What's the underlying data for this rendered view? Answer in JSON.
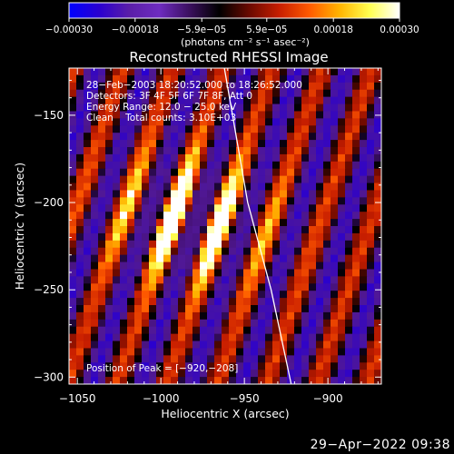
{
  "chart_data": {
    "type": "heatmap",
    "title": "Reconstructed RHESSI Image",
    "xlabel": "Heliocentric X (arcsec)",
    "ylabel": "Heliocentric Y (arcsec)",
    "xlim": [
      -1055,
      -868
    ],
    "ylim": [
      -304,
      -123
    ],
    "xticks": [
      -1050,
      -1000,
      -950,
      -900
    ],
    "xtick_labels": [
      "−1050",
      "−1000",
      "−950",
      "−900"
    ],
    "yticks": [
      -150,
      -200,
      -250,
      -300
    ],
    "ytick_labels": [
      "−150",
      "−200",
      "−250",
      "−300"
    ],
    "colorbar": {
      "min": -0.0003,
      "max": 0.0003,
      "ticks": [
        -0.0003,
        -0.00018,
        -5.9e-05,
        5.9e-05,
        0.00018,
        0.0003
      ],
      "tick_labels": [
        "−0.00030",
        "−0.00018",
        "−5.9e−05",
        "5.9e−05",
        "0.00018",
        "0.00030"
      ],
      "unit_label": "(photons cm⁻² s⁻¹ asec⁻²)",
      "colors": [
        "#0000ff",
        "#2a00d0",
        "#5a1ea8",
        "#6e2cc0",
        "#3c1060",
        "#000000",
        "#6a0a00",
        "#c81e00",
        "#ff5a00",
        "#ffb400",
        "#ffff50",
        "#ffffff"
      ]
    },
    "annotations": [
      "28−Feb−2003 18:20:52.000 to 18:26:52.000",
      "Detectors: 3F 4F 5F 6F 7F 8F, Att 0",
      "Energy Range: 12.0 − 25.0 keV",
      "Clean    Total counts: 3.10E+03"
    ],
    "peak_label": "Position of Peak = [−920,−208]",
    "peak": [
      -920,
      -208
    ],
    "limb_curve": [
      [
        -962,
        -123
      ],
      [
        -948,
        -200
      ],
      [
        -934,
        -250
      ],
      [
        -922,
        -304
      ]
    ],
    "grid": false
  },
  "footer": {
    "timestamp": "29−Apr−2022 09:38"
  }
}
